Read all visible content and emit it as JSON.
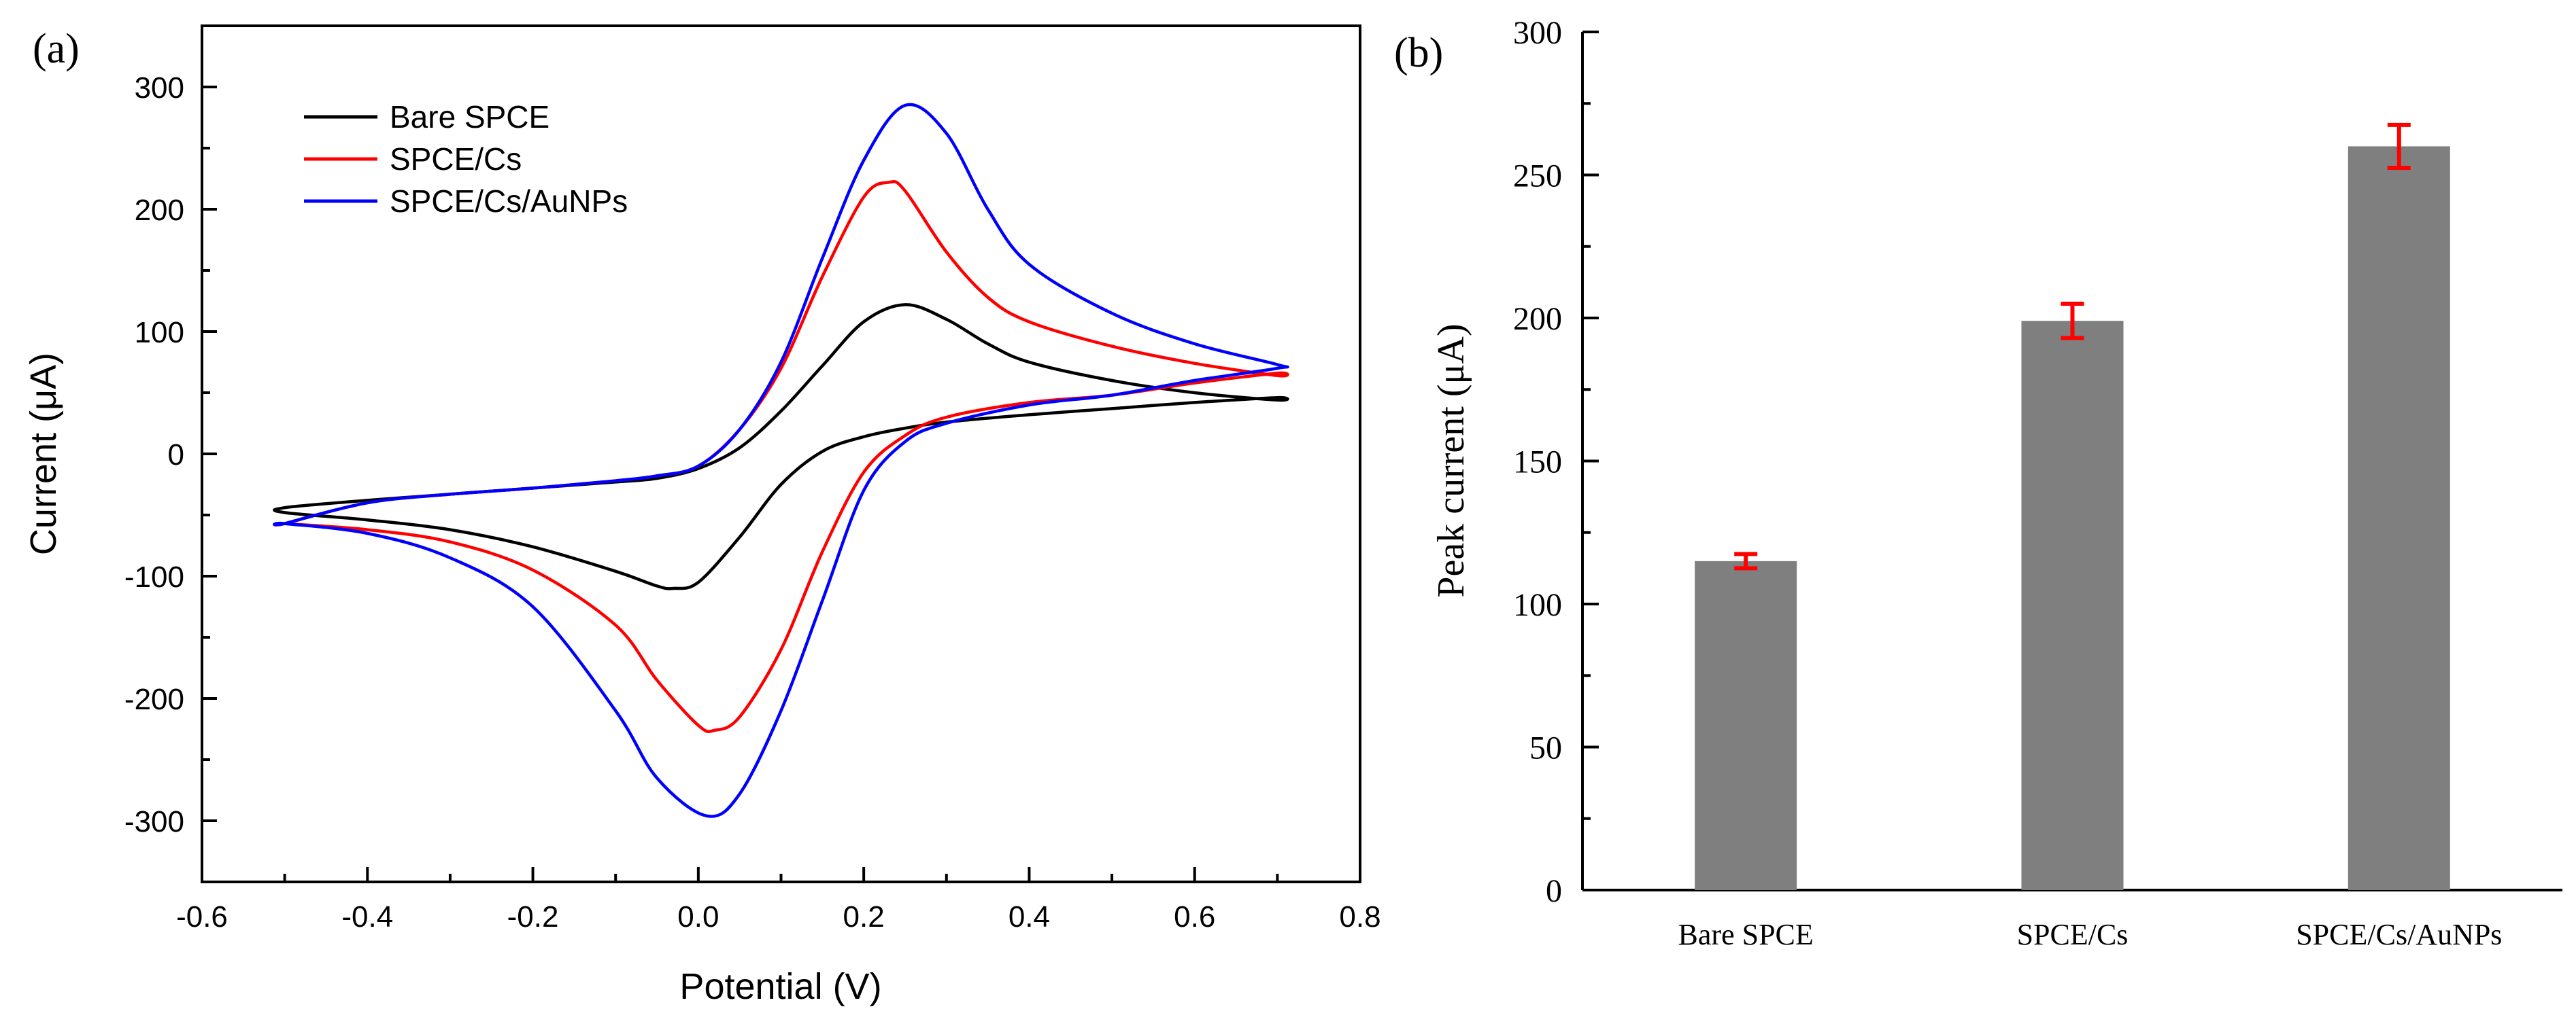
{
  "chart_data": [
    {
      "type": "line",
      "panel_label": "(a)",
      "xlabel": "Potential (V)",
      "ylabel": "Current (μA)",
      "xlim": [
        -0.6,
        0.8
      ],
      "ylim": [
        -350,
        350
      ],
      "xticks": [
        -0.6,
        -0.4,
        -0.2,
        0.0,
        0.2,
        0.4,
        0.6,
        0.8
      ],
      "xtick_labels": [
        "-0.6",
        "-0.4",
        "-0.2",
        "0.0",
        "0.2",
        "0.4",
        "0.6",
        "0.8"
      ],
      "yticks": [
        -300,
        -200,
        -100,
        0,
        100,
        200,
        300
      ],
      "ytick_labels": [
        "-300",
        "-200",
        "-100",
        "0",
        "100",
        "200",
        "300"
      ],
      "legend_position": "top-left",
      "series": [
        {
          "name": "Bare SPCE",
          "color": "#000000",
          "x": [
            -0.5,
            -0.4,
            -0.3,
            -0.2,
            -0.1,
            -0.05,
            0.0,
            0.05,
            0.1,
            0.15,
            0.2,
            0.25,
            0.3,
            0.35,
            0.4,
            0.5,
            0.6,
            0.7,
            0.7,
            0.6,
            0.5,
            0.4,
            0.3,
            0.25,
            0.2,
            0.15,
            0.1,
            0.05,
            0.0,
            -0.03,
            -0.05,
            -0.1,
            -0.2,
            -0.3,
            -0.4,
            -0.5
          ],
          "y": [
            -44,
            -38,
            -33,
            -28,
            -23,
            -20,
            -12,
            5,
            35,
            72,
            108,
            122,
            110,
            90,
            75,
            60,
            50,
            44,
            46,
            42,
            37,
            32,
            26,
            21,
            14,
            2,
            -25,
            -68,
            -105,
            -110,
            -108,
            -96,
            -76,
            -62,
            -54,
            -48
          ]
        },
        {
          "name": "SPCE/Cs",
          "color": "#ff0000",
          "x": [
            -0.5,
            -0.4,
            -0.3,
            -0.2,
            -0.1,
            -0.05,
            0.0,
            0.05,
            0.1,
            0.15,
            0.2,
            0.23,
            0.25,
            0.3,
            0.35,
            0.4,
            0.5,
            0.6,
            0.7,
            0.7,
            0.6,
            0.5,
            0.4,
            0.3,
            0.25,
            0.2,
            0.15,
            0.1,
            0.05,
            0.02,
            0.0,
            -0.05,
            -0.1,
            -0.2,
            -0.3,
            -0.4,
            -0.5
          ],
          "y": [
            -57,
            -40,
            -33,
            -28,
            -22,
            -18,
            -10,
            20,
            70,
            145,
            210,
            222,
            215,
            165,
            128,
            108,
            88,
            74,
            64,
            66,
            58,
            48,
            42,
            30,
            15,
            -15,
            -80,
            -160,
            -215,
            -226,
            -222,
            -185,
            -140,
            -95,
            -72,
            -62,
            -57
          ]
        },
        {
          "name": "SPCE/Cs/AuNPs",
          "color": "#0000ff",
          "x": [
            -0.5,
            -0.4,
            -0.3,
            -0.2,
            -0.1,
            -0.05,
            0.0,
            0.05,
            0.1,
            0.15,
            0.2,
            0.25,
            0.3,
            0.35,
            0.4,
            0.5,
            0.6,
            0.7,
            0.7,
            0.6,
            0.5,
            0.4,
            0.3,
            0.25,
            0.2,
            0.15,
            0.1,
            0.05,
            0.01,
            -0.05,
            -0.1,
            -0.2,
            -0.3,
            -0.4,
            -0.5
          ],
          "y": [
            -57,
            -40,
            -33,
            -28,
            -22,
            -18,
            -10,
            20,
            75,
            160,
            240,
            285,
            262,
            200,
            155,
            115,
            90,
            73,
            70,
            60,
            48,
            40,
            25,
            10,
            -30,
            -120,
            -210,
            -278,
            -296,
            -265,
            -210,
            -125,
            -85,
            -65,
            -57
          ]
        }
      ]
    },
    {
      "type": "bar",
      "panel_label": "(b)",
      "xlabel": "",
      "ylabel": "Peak current (μA)",
      "ylim": [
        0,
        300
      ],
      "yticks": [
        0,
        50,
        100,
        150,
        200,
        250,
        300
      ],
      "ytick_labels": [
        "0",
        "50",
        "100",
        "150",
        "200",
        "250",
        "300"
      ],
      "categories": [
        "Bare SPCE",
        "SPCE/Cs",
        "SPCE/Cs/AuNPs"
      ],
      "values": [
        115,
        199,
        260
      ],
      "errors": [
        2.5,
        6,
        7.5
      ],
      "bar_color": "#7f7f7f",
      "error_color": "#ff0000"
    }
  ]
}
